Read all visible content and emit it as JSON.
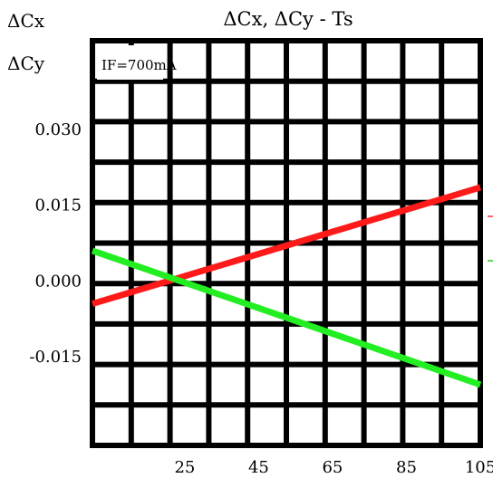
{
  "chart_data": {
    "type": "line",
    "title": "ΔCx, ΔCy - Ts",
    "ylabel_lines": [
      "ΔCx",
      "ΔCy"
    ],
    "annotation": "IF=700mA",
    "x_ticks": [
      25,
      45,
      65,
      85,
      105
    ],
    "y_ticks": [
      "0.030",
      "0.015",
      "0.000",
      "-0.015"
    ],
    "y_tick_values": [
      0.03,
      0.015,
      0.0,
      -0.015
    ],
    "xlim": [
      0,
      105
    ],
    "ylim": [
      -0.0325,
      0.0475
    ],
    "grid": true,
    "series": [
      {
        "color": "#ff1a1a",
        "x": [
          0,
          105
        ],
        "y": [
          -0.0045,
          0.0185
        ]
      },
      {
        "color": "#22ee22",
        "x": [
          0,
          105
        ],
        "y": [
          0.006,
          -0.0205
        ]
      }
    ]
  }
}
